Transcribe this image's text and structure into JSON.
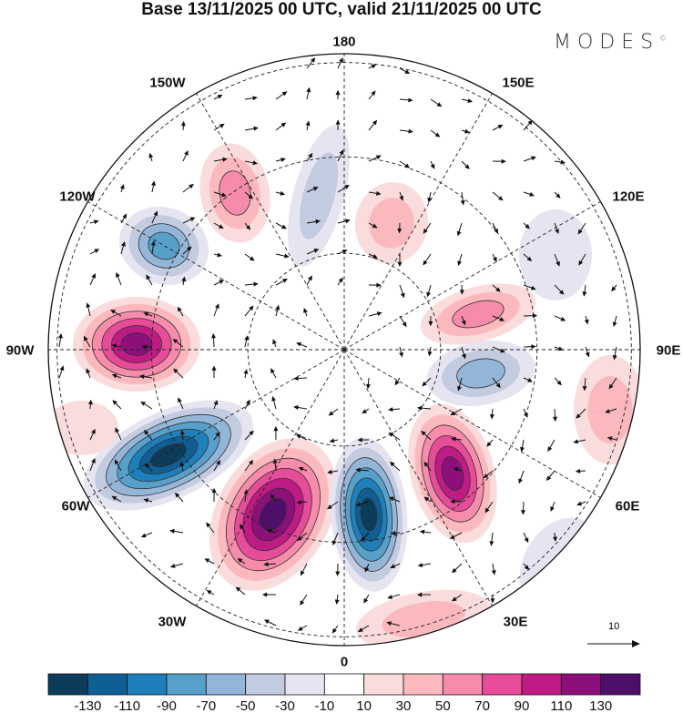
{
  "title": "Base 13/11/2025 00 UTC, valid 21/11/2025 00 UTC",
  "brand": "MODES",
  "brand_mark": "©",
  "longitude_labels": {
    "top": "180",
    "bottom": "0",
    "w150": "150W",
    "e150": "150E",
    "w120": "120W",
    "e120": "120E",
    "w90": "90W",
    "e90": "90E",
    "w60": "60W",
    "e60": "60E",
    "w30": "30W",
    "e30": "30E"
  },
  "reference_vector": {
    "label": "10",
    "icon": "arrow-right-icon"
  },
  "colorbar": {
    "colors": [
      "#0d3b5a",
      "#0f5f94",
      "#1f7fba",
      "#56a0c9",
      "#93b5d8",
      "#c3cbe0",
      "#e6e4f0",
      "#ffffff",
      "#fbdcdc",
      "#fbb8bd",
      "#f68bab",
      "#e64c98",
      "#c01b84",
      "#8c0f7a",
      "#4e0f6b"
    ],
    "labels": [
      "-130",
      "-110",
      "-90",
      "-70",
      "-50",
      "-30",
      "-10",
      "10",
      "30",
      "50",
      "70",
      "90",
      "110",
      "130"
    ]
  }
}
